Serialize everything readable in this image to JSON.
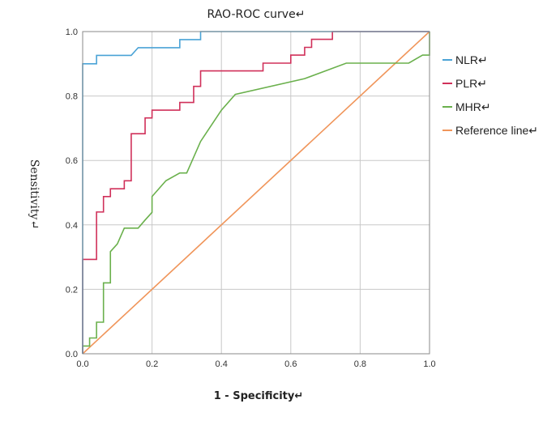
{
  "chart_data": {
    "type": "line",
    "title": "RAO-ROC curve↵",
    "xlabel": "1 - Specificity↵",
    "ylabel": "Sensitivity↵",
    "xlim": [
      0,
      1
    ],
    "ylim": [
      0,
      1
    ],
    "grid": true,
    "legend_position": "right",
    "x_ticks": [
      "0.0",
      "0.2",
      "0.4",
      "0.6",
      "0.8",
      "1.0"
    ],
    "y_ticks": [
      "0.0",
      "0.2",
      "0.4",
      "0.6",
      "0.8",
      "1.0"
    ],
    "series": [
      {
        "name": "NLR↵",
        "color": "#4aa3d6",
        "points": [
          [
            0,
            0
          ],
          [
            0,
            0.9
          ],
          [
            0.04,
            0.9
          ],
          [
            0.04,
            0.926
          ],
          [
            0.14,
            0.926
          ],
          [
            0.16,
            0.95
          ],
          [
            0.28,
            0.95
          ],
          [
            0.28,
            0.975
          ],
          [
            0.34,
            0.975
          ],
          [
            0.34,
            1.0
          ],
          [
            1.0,
            1.0
          ]
        ]
      },
      {
        "name": "PLR↵",
        "color": "#d0305a",
        "points": [
          [
            0,
            0
          ],
          [
            0,
            0.293
          ],
          [
            0.04,
            0.293
          ],
          [
            0.04,
            0.44
          ],
          [
            0.06,
            0.44
          ],
          [
            0.06,
            0.488
          ],
          [
            0.08,
            0.488
          ],
          [
            0.08,
            0.512
          ],
          [
            0.12,
            0.512
          ],
          [
            0.12,
            0.537
          ],
          [
            0.14,
            0.537
          ],
          [
            0.14,
            0.683
          ],
          [
            0.18,
            0.683
          ],
          [
            0.18,
            0.732
          ],
          [
            0.2,
            0.732
          ],
          [
            0.2,
            0.756
          ],
          [
            0.28,
            0.756
          ],
          [
            0.28,
            0.78
          ],
          [
            0.32,
            0.78
          ],
          [
            0.32,
            0.83
          ],
          [
            0.34,
            0.83
          ],
          [
            0.34,
            0.878
          ],
          [
            0.52,
            0.878
          ],
          [
            0.52,
            0.902
          ],
          [
            0.6,
            0.902
          ],
          [
            0.6,
            0.927
          ],
          [
            0.64,
            0.927
          ],
          [
            0.64,
            0.951
          ],
          [
            0.66,
            0.951
          ],
          [
            0.66,
            0.976
          ],
          [
            0.72,
            0.976
          ],
          [
            0.72,
            1.0
          ],
          [
            1.0,
            1.0
          ]
        ]
      },
      {
        "name": "MHR↵",
        "color": "#6ab04c",
        "points": [
          [
            0,
            0
          ],
          [
            0,
            0.024
          ],
          [
            0.02,
            0.024
          ],
          [
            0.02,
            0.049
          ],
          [
            0.04,
            0.049
          ],
          [
            0.04,
            0.098
          ],
          [
            0.06,
            0.098
          ],
          [
            0.06,
            0.22
          ],
          [
            0.08,
            0.22
          ],
          [
            0.08,
            0.317
          ],
          [
            0.1,
            0.341
          ],
          [
            0.12,
            0.39
          ],
          [
            0.16,
            0.39
          ],
          [
            0.18,
            0.415
          ],
          [
            0.2,
            0.439
          ],
          [
            0.2,
            0.488
          ],
          [
            0.24,
            0.537
          ],
          [
            0.28,
            0.561
          ],
          [
            0.3,
            0.561
          ],
          [
            0.34,
            0.659
          ],
          [
            0.4,
            0.756
          ],
          [
            0.44,
            0.805
          ],
          [
            0.64,
            0.854
          ],
          [
            0.76,
            0.902
          ],
          [
            0.94,
            0.902
          ],
          [
            0.98,
            0.927
          ],
          [
            1.0,
            0.927
          ],
          [
            1.0,
            1.0
          ]
        ]
      },
      {
        "name": "Reference line↵",
        "color": "#f0955a",
        "points": [
          [
            0,
            0
          ],
          [
            1,
            1
          ]
        ]
      }
    ]
  }
}
